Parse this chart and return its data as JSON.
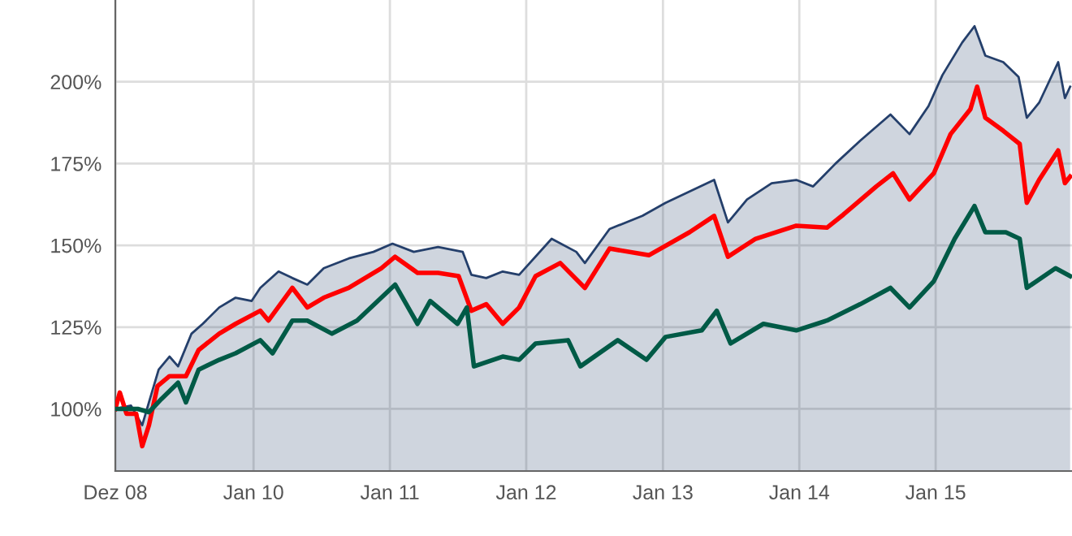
{
  "chart_data": {
    "type": "line",
    "xlim": [
      "2008-12-27",
      "2016-01-01"
    ],
    "ylim": [
      81,
      225
    ],
    "xticks": [
      {
        "value": "2008-12-27",
        "label": "Dez 08"
      },
      {
        "value": "2010-01-01",
        "label": "Jan 10"
      },
      {
        "value": "2011-01-01",
        "label": "Jan 11"
      },
      {
        "value": "2012-01-01",
        "label": "Jan 12"
      },
      {
        "value": "2013-01-01",
        "label": "Jan 13"
      },
      {
        "value": "2014-01-01",
        "label": "Jan 14"
      },
      {
        "value": "2015-01-01",
        "label": "Jan 15"
      }
    ],
    "yticks": [
      {
        "value": 100,
        "label": "100%"
      },
      {
        "value": 125,
        "label": "125%"
      },
      {
        "value": 150,
        "label": "150%"
      },
      {
        "value": 175,
        "label": "175%"
      },
      {
        "value": 200,
        "label": "200%"
      }
    ],
    "grid": true,
    "marker": "none",
    "line_style": "solid",
    "series": [
      {
        "type": "area",
        "color": "#243f6b",
        "x": [
          "2008-12-27",
          "2009-02-07",
          "2009-03-09",
          "2009-03-27",
          "2009-04-22",
          "2009-05-21",
          "2009-06-13",
          "2009-07-19",
          "2009-08-18",
          "2009-10-01",
          "2009-11-14",
          "2009-12-27",
          "2010-01-19",
          "2010-03-09",
          "2010-04-15",
          "2010-05-25",
          "2010-07-08",
          "2010-09-13",
          "2010-11-18",
          "2011-01-08",
          "2011-03-06",
          "2011-05-10",
          "2011-07-15",
          "2011-08-07",
          "2011-09-16",
          "2011-10-30",
          "2011-12-13",
          "2012-03-09",
          "2012-05-14",
          "2012-06-06",
          "2012-08-11",
          "2012-11-07",
          "2013-01-08",
          "2013-05-18",
          "2013-06-24",
          "2013-08-14",
          "2013-10-19",
          "2013-12-24",
          "2014-02-07",
          "2014-04-08",
          "2014-06-13",
          "2014-09-02",
          "2014-10-23",
          "2014-12-13",
          "2015-01-19",
          "2015-03-13",
          "2015-04-15",
          "2015-05-14",
          "2015-07-01",
          "2015-08-11",
          "2015-09-02",
          "2015-10-05",
          "2015-11-25",
          "2015-12-13",
          "2015-12-27"
        ],
        "values": [
          100,
          101,
          95,
          102,
          112,
          116,
          113,
          123,
          126,
          131,
          134,
          133,
          137,
          142,
          140,
          138,
          143,
          146,
          148,
          150.5,
          148,
          149.5,
          148,
          141,
          140,
          142,
          141,
          152,
          148,
          144.6,
          155,
          159,
          163,
          170,
          157,
          164,
          169,
          170,
          168,
          175,
          182,
          190,
          184,
          192.6,
          202,
          212,
          217,
          208,
          206,
          201.5,
          189,
          193.6,
          206,
          195,
          198.5
        ]
      },
      {
        "color": "#ff0000",
        "x": [
          "2008-12-27",
          "2009-01-08",
          "2009-01-26",
          "2009-02-21",
          "2009-03-09",
          "2009-03-27",
          "2009-04-19",
          "2009-05-21",
          "2009-07-04",
          "2009-08-07",
          "2009-10-01",
          "2009-11-14",
          "2010-01-19",
          "2010-02-10",
          "2010-04-15",
          "2010-05-25",
          "2010-07-08",
          "2010-09-13",
          "2010-12-09",
          "2011-01-15",
          "2011-03-16",
          "2011-05-10",
          "2011-07-04",
          "2011-08-07",
          "2011-09-16",
          "2011-10-30",
          "2011-12-13",
          "2012-01-26",
          "2012-04-01",
          "2012-06-06",
          "2012-08-11",
          "2012-11-25",
          "2013-03-13",
          "2013-05-18",
          "2013-06-24",
          "2013-09-06",
          "2013-12-24",
          "2014-03-16",
          "2014-04-29",
          "2014-07-26",
          "2014-09-09",
          "2014-10-23",
          "2014-12-27",
          "2015-02-10",
          "2015-04-04",
          "2015-04-22",
          "2015-05-14",
          "2015-07-01",
          "2015-08-14",
          "2015-09-02",
          "2015-10-05",
          "2015-11-25",
          "2015-12-13",
          "2015-12-27"
        ],
        "values": [
          100,
          105,
          98.5,
          98.5,
          88.6,
          95,
          107,
          110,
          110,
          118,
          123,
          126,
          130,
          127,
          137,
          131,
          134,
          137,
          143,
          146.5,
          141.6,
          141.6,
          140.6,
          130,
          132,
          126,
          131,
          140.6,
          144.6,
          137,
          149,
          147,
          154,
          159,
          146.5,
          152,
          156,
          155.4,
          159.4,
          168,
          172,
          164,
          172,
          184,
          191.6,
          198.5,
          189,
          185,
          181,
          163,
          170,
          179,
          169,
          171
        ]
      },
      {
        "color": "#005a46",
        "x": [
          "2008-12-27",
          "2009-02-25",
          "2009-03-27",
          "2009-04-29",
          "2009-06-13",
          "2009-07-04",
          "2009-08-07",
          "2009-10-01",
          "2009-11-14",
          "2010-01-19",
          "2010-02-21",
          "2010-04-15",
          "2010-05-25",
          "2010-07-30",
          "2010-10-05",
          "2011-01-15",
          "2011-03-16",
          "2011-04-19",
          "2011-07-01",
          "2011-07-26",
          "2011-08-14",
          "2011-10-30",
          "2011-12-13",
          "2012-01-26",
          "2012-04-22",
          "2012-05-25",
          "2012-09-02",
          "2012-11-18",
          "2013-01-08",
          "2013-04-15",
          "2013-05-25",
          "2013-07-01",
          "2013-09-27",
          "2013-12-24",
          "2014-03-16",
          "2014-06-13",
          "2014-09-02",
          "2014-10-23",
          "2014-12-27",
          "2015-02-21",
          "2015-04-15",
          "2015-05-14",
          "2015-07-08",
          "2015-08-14",
          "2015-09-02",
          "2015-11-18",
          "2015-12-27"
        ],
        "values": [
          100,
          100,
          99,
          103,
          108,
          102,
          112,
          115,
          117,
          121,
          117,
          127,
          127,
          123,
          127,
          138,
          126,
          133,
          126,
          131,
          113,
          116,
          115,
          120,
          121,
          113,
          121,
          115,
          122,
          124,
          130,
          120,
          126,
          124,
          127,
          132,
          137,
          131,
          139,
          152,
          162,
          154,
          154,
          152,
          137,
          143,
          140.6
        ]
      }
    ]
  }
}
